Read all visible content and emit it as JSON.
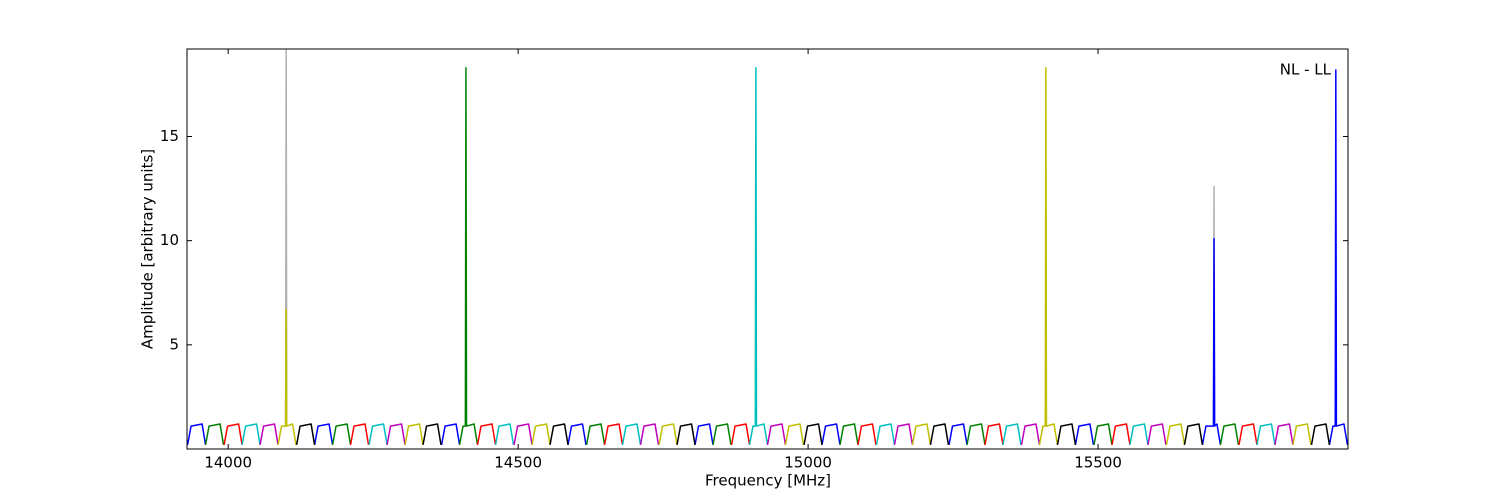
{
  "chart_data": {
    "type": "line",
    "xlabel": "Frequency [MHz]",
    "ylabel": "Amplitude [arbitrary units]",
    "annotation": "NL - LL",
    "xlim": [
      13929,
      15931
    ],
    "xticks": [
      14000,
      14500,
      15000,
      15500
    ],
    "ylim": [
      0,
      19.2
    ],
    "yticks": [
      5,
      10,
      15
    ],
    "series": [
      {
        "color": "#b0b0b0",
        "x": [
          14099,
          14100,
          14101,
          null,
          15699,
          15700,
          15701
        ],
        "values": [
          1.1,
          19.2,
          1.1,
          null,
          1.1,
          12.6,
          1.1
        ]
      },
      {
        "color": "#0000ff",
        "x": [
          13930,
          13936,
          13955,
          13961,
          null,
          14149,
          14155,
          14174,
          14180,
          null,
          14368,
          14374,
          14393,
          14399,
          null,
          14586,
          14592,
          14611,
          14617,
          null,
          14805,
          14811,
          14830,
          14836,
          null,
          15024,
          15030,
          15049,
          15055,
          null,
          15243,
          15249,
          15268,
          15274,
          null,
          15461,
          15467,
          15486,
          15492,
          null,
          15680,
          15686,
          15699,
          15700,
          15701,
          15705,
          15711,
          null,
          15899,
          15905,
          15909,
          15910,
          15911,
          15924,
          15930
        ],
        "values": [
          0.2,
          1.1,
          1.2,
          0.2,
          null,
          0.2,
          1.1,
          1.2,
          0.2,
          null,
          0.2,
          1.1,
          1.2,
          0.2,
          null,
          0.2,
          1.1,
          1.2,
          0.2,
          null,
          0.2,
          1.1,
          1.2,
          0.2,
          null,
          0.2,
          1.1,
          1.2,
          0.2,
          null,
          0.2,
          1.1,
          1.2,
          0.2,
          null,
          0.2,
          1.1,
          1.2,
          0.2,
          null,
          0.2,
          1.1,
          1.1,
          10.1,
          1.1,
          1.2,
          0.2,
          null,
          0.2,
          1.1,
          1.1,
          18.2,
          1.1,
          1.2,
          0.2
        ]
      },
      {
        "color": "#008000",
        "x": [
          13961,
          13967,
          13986,
          13992,
          null,
          14180,
          14186,
          14205,
          14211,
          null,
          14399,
          14405,
          14409,
          14410,
          14411,
          14424,
          14430,
          null,
          14618,
          14624,
          14643,
          14649,
          null,
          14836,
          14842,
          14861,
          14867,
          null,
          15055,
          15061,
          15080,
          15086,
          null,
          15274,
          15280,
          15299,
          15305,
          null,
          15493,
          15499,
          15518,
          15524,
          null,
          15711,
          15717,
          15736,
          15742
        ],
        "values": [
          0.2,
          1.1,
          1.2,
          0.2,
          null,
          0.2,
          1.1,
          1.2,
          0.2,
          null,
          0.2,
          1.1,
          1.1,
          18.3,
          1.1,
          1.2,
          0.2,
          null,
          0.2,
          1.1,
          1.2,
          0.2,
          null,
          0.2,
          1.1,
          1.2,
          0.2,
          null,
          0.2,
          1.1,
          1.2,
          0.2,
          null,
          0.2,
          1.1,
          1.2,
          0.2,
          null,
          0.2,
          1.1,
          1.2,
          0.2,
          null,
          0.2,
          1.1,
          1.2,
          0.2
        ]
      },
      {
        "color": "#ff0000",
        "x": [
          13993,
          13999,
          14018,
          14024,
          null,
          14211,
          14217,
          14236,
          14242,
          null,
          14430,
          14436,
          14455,
          14461,
          null,
          14649,
          14655,
          14674,
          14680,
          null,
          14868,
          14874,
          14893,
          14899,
          null,
          15086,
          15092,
          15111,
          15117,
          null,
          15305,
          15311,
          15330,
          15336,
          null,
          15524,
          15530,
          15549,
          15555,
          null,
          15743,
          15749,
          15768,
          15774
        ],
        "values": [
          0.2,
          1.1,
          1.2,
          0.2,
          null,
          0.2,
          1.1,
          1.2,
          0.2,
          null,
          0.2,
          1.1,
          1.2,
          0.2,
          null,
          0.2,
          1.1,
          1.2,
          0.2,
          null,
          0.2,
          1.1,
          1.2,
          0.2,
          null,
          0.2,
          1.1,
          1.2,
          0.2,
          null,
          0.2,
          1.1,
          1.2,
          0.2,
          null,
          0.2,
          1.1,
          1.2,
          0.2,
          null,
          0.2,
          1.1,
          1.2,
          0.2
        ]
      },
      {
        "color": "#00bfbf",
        "x": [
          14024,
          14030,
          14049,
          14055,
          null,
          14243,
          14249,
          14268,
          14274,
          null,
          14461,
          14467,
          14486,
          14492,
          null,
          14680,
          14686,
          14705,
          14711,
          null,
          14899,
          14905,
          14909,
          14910,
          14911,
          14924,
          14930,
          null,
          15118,
          15124,
          15143,
          15149,
          null,
          15336,
          15342,
          15361,
          15367,
          null,
          15555,
          15561,
          15580,
          15586,
          null,
          15774,
          15780,
          15799,
          15805
        ],
        "values": [
          0.2,
          1.1,
          1.2,
          0.2,
          null,
          0.2,
          1.1,
          1.2,
          0.2,
          null,
          0.2,
          1.1,
          1.2,
          0.2,
          null,
          0.2,
          1.1,
          1.2,
          0.2,
          null,
          0.2,
          1.1,
          1.1,
          18.3,
          1.1,
          1.2,
          0.2,
          null,
          0.2,
          1.1,
          1.2,
          0.2,
          null,
          0.2,
          1.1,
          1.2,
          0.2,
          null,
          0.2,
          1.1,
          1.2,
          0.2,
          null,
          0.2,
          1.1,
          1.2,
          0.2
        ]
      },
      {
        "color": "#bf00bf",
        "x": [
          14055,
          14061,
          14080,
          14086,
          null,
          14274,
          14280,
          14299,
          14305,
          null,
          14493,
          14499,
          14518,
          14524,
          null,
          14711,
          14717,
          14736,
          14742,
          null,
          14930,
          14936,
          14955,
          14961,
          null,
          15149,
          15155,
          15174,
          15180,
          null,
          15368,
          15374,
          15393,
          15399,
          null,
          15586,
          15592,
          15611,
          15617,
          null,
          15805,
          15811,
          15830,
          15836
        ],
        "values": [
          0.2,
          1.1,
          1.2,
          0.2,
          null,
          0.2,
          1.1,
          1.2,
          0.2,
          null,
          0.2,
          1.1,
          1.2,
          0.2,
          null,
          0.2,
          1.1,
          1.2,
          0.2,
          null,
          0.2,
          1.1,
          1.2,
          0.2,
          null,
          0.2,
          1.1,
          1.2,
          0.2,
          null,
          0.2,
          1.1,
          1.2,
          0.2,
          null,
          0.2,
          1.1,
          1.2,
          0.2,
          null,
          0.2,
          1.1,
          1.2,
          0.2
        ]
      },
      {
        "color": "#bfbf00",
        "x": [
          14086,
          14092,
          14099,
          14100,
          14101,
          14111,
          14117,
          null,
          14305,
          14311,
          14330,
          14336,
          null,
          14524,
          14530,
          14549,
          14555,
          null,
          14743,
          14749,
          14768,
          14774,
          null,
          14961,
          14967,
          14986,
          14992,
          null,
          15180,
          15186,
          15205,
          15211,
          null,
          15399,
          15405,
          15409,
          15410,
          15411,
          15424,
          15430,
          null,
          15618,
          15624,
          15643,
          15649,
          null,
          15836,
          15842,
          15861,
          15867
        ],
        "values": [
          0.2,
          1.1,
          1.1,
          6.7,
          1.1,
          1.2,
          0.2,
          null,
          0.2,
          1.1,
          1.2,
          0.2,
          null,
          0.2,
          1.1,
          1.2,
          0.2,
          null,
          0.2,
          1.1,
          1.2,
          0.2,
          null,
          0.2,
          1.1,
          1.2,
          0.2,
          null,
          0.2,
          1.1,
          1.2,
          0.2,
          null,
          0.2,
          1.1,
          1.1,
          18.3,
          1.1,
          1.2,
          0.2,
          null,
          0.2,
          1.1,
          1.2,
          0.2,
          null,
          0.2,
          1.1,
          1.2,
          0.2
        ]
      },
      {
        "color": "#000000",
        "x": [
          14118,
          14124,
          14143,
          14149,
          null,
          14336,
          14342,
          14361,
          14367,
          null,
          14555,
          14561,
          14580,
          14586,
          null,
          14774,
          14780,
          14799,
          14805,
          null,
          14993,
          14999,
          15018,
          15024,
          null,
          15211,
          15217,
          15236,
          15242,
          null,
          15430,
          15436,
          15455,
          15461,
          null,
          15649,
          15655,
          15674,
          15680,
          null,
          15868,
          15874,
          15893,
          15899
        ],
        "values": [
          0.2,
          1.1,
          1.2,
          0.2,
          null,
          0.2,
          1.1,
          1.2,
          0.2,
          null,
          0.2,
          1.1,
          1.2,
          0.2,
          null,
          0.2,
          1.1,
          1.2,
          0.2,
          null,
          0.2,
          1.1,
          1.2,
          0.2,
          null,
          0.2,
          1.1,
          1.2,
          0.2,
          null,
          0.2,
          1.1,
          1.2,
          0.2,
          null,
          0.2,
          1.1,
          1.2,
          0.2,
          null,
          0.2,
          1.1,
          1.2,
          0.2
        ]
      }
    ]
  }
}
